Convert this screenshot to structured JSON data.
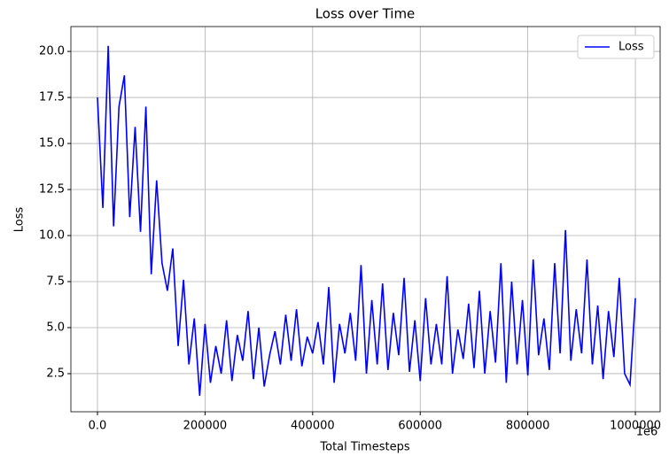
{
  "chart_data": {
    "type": "line",
    "title": "Loss over Time",
    "x_label": "Total Timesteps",
    "y_label": "Loss",
    "x_offset_label": "1e6",
    "x": [
      0,
      10000,
      20000,
      30000,
      40000,
      50000,
      60000,
      70000,
      80000,
      90000,
      100000,
      110000,
      120000,
      130000,
      140000,
      150000,
      160000,
      170000,
      180000,
      190000,
      200000,
      210000,
      220000,
      230000,
      240000,
      250000,
      260000,
      270000,
      280000,
      290000,
      300000,
      310000,
      320000,
      330000,
      340000,
      350000,
      360000,
      370000,
      380000,
      390000,
      400000,
      410000,
      420000,
      430000,
      440000,
      450000,
      460000,
      470000,
      480000,
      490000,
      500000,
      510000,
      520000,
      530000,
      540000,
      550000,
      560000,
      570000,
      580000,
      590000,
      600000,
      610000,
      620000,
      630000,
      640000,
      650000,
      660000,
      670000,
      680000,
      690000,
      700000,
      710000,
      720000,
      730000,
      740000,
      750000,
      760000,
      770000,
      780000,
      790000,
      800000,
      810000,
      820000,
      830000,
      840000,
      850000,
      860000,
      870000,
      880000,
      890000,
      900000,
      910000,
      920000,
      930000,
      940000,
      950000,
      960000,
      970000,
      980000,
      990000,
      1000000
    ],
    "series": [
      {
        "name": "Loss",
        "color": "#0000ff",
        "values": [
          17.5,
          11.5,
          20.3,
          10.5,
          17.0,
          18.7,
          11.0,
          15.9,
          10.2,
          17.0,
          7.9,
          13.0,
          8.5,
          7.0,
          9.3,
          4.0,
          7.6,
          3.0,
          5.5,
          1.3,
          5.2,
          2.0,
          4.0,
          2.5,
          5.4,
          2.1,
          4.6,
          3.2,
          5.9,
          2.2,
          5.0,
          1.8,
          3.5,
          4.8,
          3.0,
          5.7,
          3.2,
          6.0,
          2.9,
          4.5,
          3.6,
          5.3,
          3.0,
          7.2,
          2.0,
          5.2,
          3.6,
          5.8,
          3.2,
          8.4,
          2.5,
          6.5,
          3.0,
          7.4,
          2.7,
          5.8,
          3.5,
          7.7,
          2.6,
          5.4,
          2.1,
          6.6,
          3.0,
          5.2,
          3.0,
          7.8,
          2.5,
          4.9,
          3.3,
          6.3,
          2.8,
          7.0,
          2.5,
          5.9,
          3.1,
          8.5,
          2.0,
          7.5,
          3.0,
          6.5,
          2.4,
          8.7,
          3.5,
          5.5,
          2.7,
          8.5,
          3.6,
          10.3,
          3.2,
          6.0,
          3.6,
          8.7,
          3.0,
          6.2,
          2.2,
          5.9,
          3.4,
          7.7,
          2.5,
          1.9,
          6.6
        ]
      }
    ],
    "xlim": [
      -49400,
      1046000
    ],
    "ylim": [
      0.43,
      21.35
    ],
    "xticks": [
      {
        "value": 0,
        "label": "0.0"
      },
      200000,
      400000,
      600000,
      800000,
      1000000
    ],
    "yticks": [
      2.5,
      {
        "value": 5,
        "label": "5.0"
      },
      7.5,
      {
        "value": 10,
        "label": "10.0"
      },
      12.5,
      {
        "value": 15,
        "label": "15.0"
      },
      17.5,
      {
        "value": 20,
        "label": "20.0"
      }
    ],
    "grid": true,
    "legend": "upper right"
  }
}
